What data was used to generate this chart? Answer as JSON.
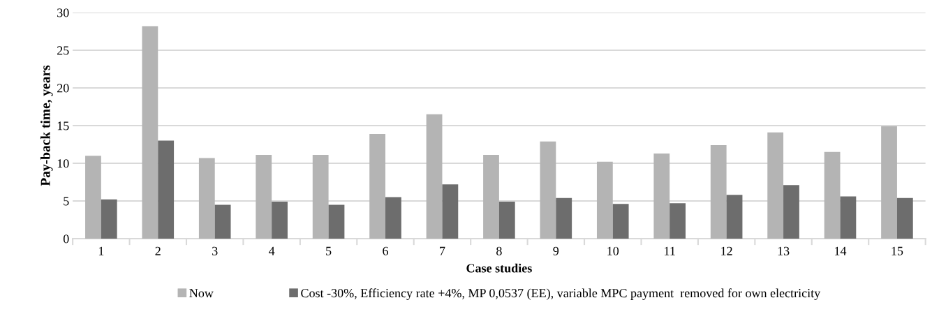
{
  "chart_data": {
    "type": "bar",
    "xlabel": "Case studies",
    "ylabel": "Pay-back time, years",
    "categories": [
      "1",
      "2",
      "3",
      "4",
      "5",
      "6",
      "7",
      "8",
      "9",
      "10",
      "11",
      "12",
      "13",
      "14",
      "15"
    ],
    "series": [
      {
        "name": "Now",
        "color": "#b4b4b4",
        "values": [
          11.0,
          28.2,
          10.7,
          11.1,
          11.1,
          13.9,
          16.5,
          11.1,
          12.9,
          10.2,
          11.3,
          12.4,
          14.1,
          11.5,
          14.9
        ]
      },
      {
        "name": "Cost -30%, Efficiency rate +4%, MP 0,0537 (EE), variable MPC payment  removed for own electricity",
        "color": "#6d6d6d",
        "values": [
          5.2,
          13.0,
          4.5,
          4.9,
          4.5,
          5.5,
          7.2,
          4.9,
          5.4,
          4.6,
          4.7,
          5.8,
          7.1,
          5.6,
          5.4
        ]
      }
    ],
    "ylim": [
      0,
      30
    ],
    "yticks": [
      0,
      5,
      10,
      15,
      20,
      25,
      30
    ],
    "grid": "y",
    "legend": "bottom"
  }
}
